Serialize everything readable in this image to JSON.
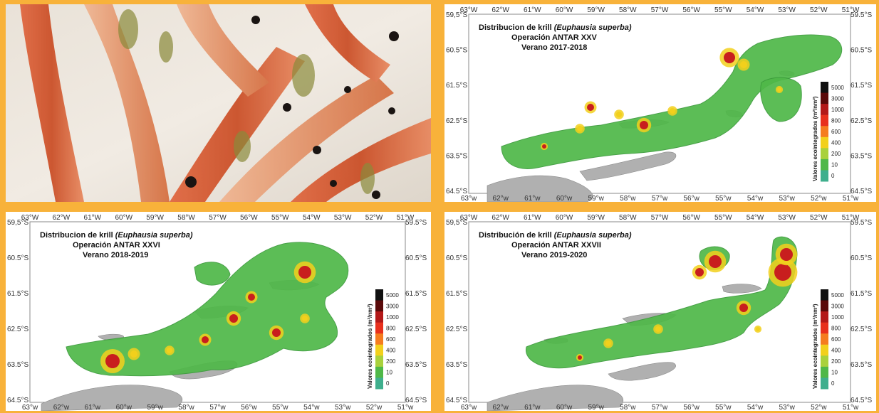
{
  "photo": {
    "caption": ""
  },
  "axes": {
    "lon_top": [
      "63°W",
      "62°W",
      "61°W",
      "60°W",
      "59°W",
      "58°W",
      "57°W",
      "56°W",
      "55°W",
      "54°W",
      "53°W",
      "52°W",
      "51°W"
    ],
    "lon_bottom": [
      "63°w",
      "62°w",
      "61°w",
      "60°w",
      "59°w",
      "58°w",
      "57°w",
      "56°w",
      "55°w",
      "54°w",
      "53°w",
      "52°w",
      "51°w"
    ],
    "lat_left": [
      "59,5°S",
      "60.5°S",
      "61.5°S",
      "62.5°S",
      "63.5°S",
      "64.5°S"
    ],
    "lat_right": [
      "59.5°S",
      "60.5°S",
      "61.5°S",
      "62.5°S",
      "63.5°S",
      "64.5°S"
    ]
  },
  "legend": {
    "title": "Valores ecointegrados (m²/nm²)",
    "values": [
      "5000",
      "3000",
      "1000",
      "800",
      "600",
      "400",
      "200",
      "10",
      "0"
    ],
    "colors": [
      "#111111",
      "#5a0a0a",
      "#b31919",
      "#e8301d",
      "#f57c1f",
      "#f2d01c",
      "#a9d13c",
      "#4fb848",
      "#3faf8d"
    ]
  },
  "maps": [
    {
      "title": "Distribucion de krill ",
      "species": "(Euphausia superba)",
      "operation": "Operación ANTAR XXV",
      "season": "Verano 2017-2018"
    },
    {
      "title": "Distribucion de krill ",
      "species": "(Euphausia superba)",
      "operation": "Operación ANTAR XXVI",
      "season": "Verano 2018-2019"
    },
    {
      "title": "Distribución de krill ",
      "species": "(Euphausia superba)",
      "operation": "Operación ANTAR XXVII",
      "season": "Verano 2019-2020"
    }
  ],
  "colors": {
    "background": "#f8b23a",
    "land": "#b0b0b0",
    "low": "#4fb848",
    "mid": "#f2d01c",
    "high": "#c81e1e"
  }
}
